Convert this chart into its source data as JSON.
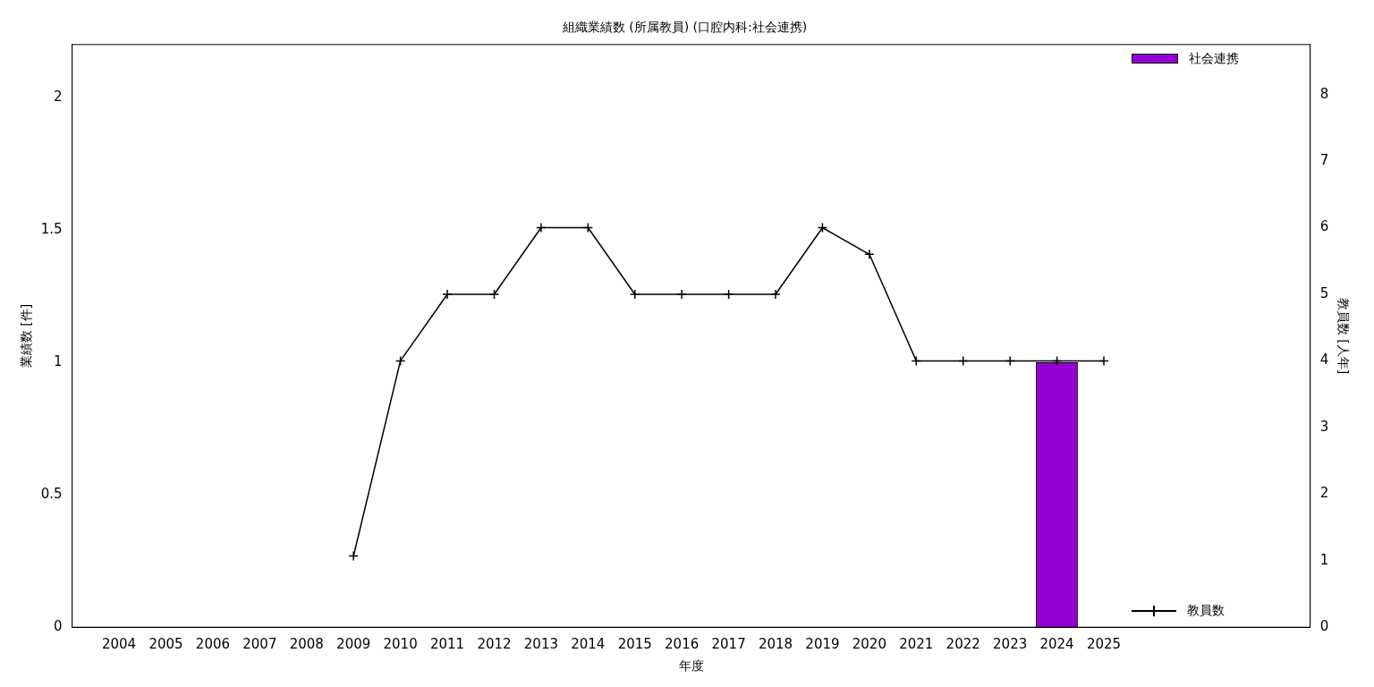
{
  "chart_data": {
    "type": "bar",
    "title": "組織業績数 (所属教員) (口腔内科:社会連携)",
    "xlabel": "年度",
    "ylabel": "業績数 [件]",
    "y2label": "教員数 [人年]",
    "x": [
      2004,
      2005,
      2006,
      2007,
      2008,
      2009,
      2010,
      2011,
      2012,
      2013,
      2014,
      2015,
      2016,
      2017,
      2018,
      2019,
      2020,
      2021,
      2022,
      2023,
      2024,
      2025
    ],
    "xlim": [
      2003,
      2029.4
    ],
    "xticks": [
      2004,
      2005,
      2006,
      2007,
      2008,
      2009,
      2010,
      2011,
      2012,
      2013,
      2014,
      2015,
      2016,
      2017,
      2018,
      2019,
      2020,
      2021,
      2022,
      2023,
      2024,
      2025
    ],
    "ylim": [
      0,
      2.2
    ],
    "yticks": [
      0,
      0.5,
      1,
      1.5,
      2
    ],
    "y2lim": [
      0,
      8.75
    ],
    "y2ticks": [
      0,
      1,
      2,
      3,
      4,
      5,
      6,
      7,
      8
    ],
    "series": [
      {
        "name": "社会連携",
        "color": "#9400d3",
        "values": [
          0,
          0,
          0,
          0,
          0,
          0,
          0,
          0,
          0,
          0,
          0,
          0,
          0,
          0,
          0,
          0,
          0,
          0,
          0,
          0,
          1,
          0
        ]
      },
      {
        "name": "教員数",
        "type": "line",
        "axis": "y2",
        "color": "#000000",
        "marker": "cross",
        "values": [
          null,
          null,
          null,
          null,
          null,
          1.07,
          4,
          5,
          5,
          6,
          6,
          5,
          5,
          5,
          5,
          6,
          5.6,
          4,
          4,
          4,
          4,
          4
        ]
      }
    ],
    "legend": "right",
    "grid": false
  }
}
